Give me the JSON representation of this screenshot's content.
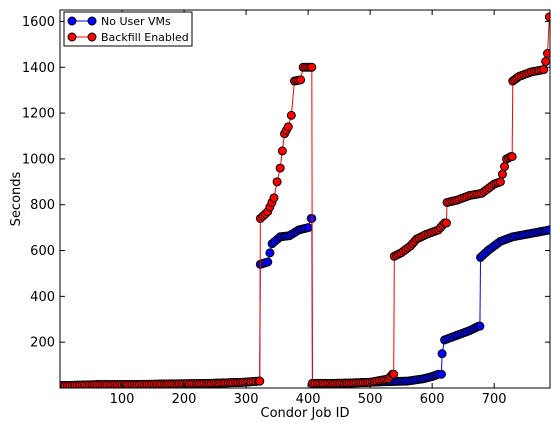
{
  "chart_data": {
    "type": "line",
    "xlabel": "Condor Job ID",
    "ylabel": "Seconds",
    "xlim": [
      0,
      790
    ],
    "ylim": [
      0,
      1650
    ],
    "x_ticks": [
      100,
      200,
      300,
      400,
      500,
      600,
      700
    ],
    "y_ticks": [
      200,
      400,
      600,
      800,
      1000,
      1200,
      1400,
      1600
    ],
    "grid": false,
    "legend_position": "top-left",
    "series": [
      {
        "name": "No User VMs",
        "color": "#0000ff",
        "segments": [
          [
            [
              0,
              10
            ],
            [
              60,
              14
            ],
            [
              120,
              15
            ],
            [
              180,
              18
            ],
            [
              240,
              20
            ],
            [
              295,
              25
            ],
            [
              320,
              30
            ],
            [
              322,
              30
            ]
          ],
          [
            [
              323,
              540
            ],
            [
              335,
              550
            ],
            [
              342,
              630
            ],
            [
              355,
              660
            ],
            [
              370,
              665
            ],
            [
              385,
              690
            ],
            [
              400,
              700
            ],
            [
              405,
              740
            ],
            [
              406,
              740
            ]
          ],
          [
            [
              407,
              20
            ],
            [
              440,
              20
            ],
            [
              470,
              22
            ],
            [
              500,
              25
            ],
            [
              530,
              28
            ],
            [
              560,
              30
            ],
            [
              585,
              40
            ],
            [
              600,
              50
            ],
            [
              610,
              60
            ],
            [
              615,
              60
            ]
          ],
          [
            [
              616,
              150
            ],
            [
              620,
              210
            ],
            [
              640,
              230
            ],
            [
              660,
              250
            ],
            [
              675,
              270
            ],
            [
              677,
              270
            ]
          ],
          [
            [
              678,
              570
            ],
            [
              690,
              600
            ],
            [
              710,
              640
            ],
            [
              730,
              660
            ],
            [
              750,
              670
            ],
            [
              770,
              680
            ],
            [
              789,
              690
            ]
          ]
        ]
      },
      {
        "name": "Backfill Enabled",
        "color": "#ff0000",
        "segments": [
          [
            [
              0,
              10
            ],
            [
              60,
              15
            ],
            [
              120,
              15
            ],
            [
              180,
              18
            ],
            [
              240,
              20
            ],
            [
              295,
              25
            ],
            [
              320,
              30
            ],
            [
              322,
              30
            ]
          ],
          [
            [
              323,
              740
            ],
            [
              335,
              770
            ],
            [
              345,
              830
            ],
            [
              350,
              900
            ],
            [
              355,
              960
            ],
            [
              362,
              1110
            ],
            [
              368,
              1140
            ],
            [
              373,
              1190
            ],
            [
              378,
              1340
            ],
            [
              388,
              1345
            ],
            [
              392,
              1400
            ],
            [
              403,
              1400
            ],
            [
              406,
              1400
            ]
          ],
          [
            [
              407,
              20
            ],
            [
              440,
              20
            ],
            [
              470,
              22
            ],
            [
              500,
              25
            ],
            [
              530,
              40
            ],
            [
              536,
              60
            ],
            [
              538,
              60
            ]
          ],
          [
            [
              539,
              575
            ],
            [
              550,
              590
            ],
            [
              565,
              620
            ],
            [
              575,
              650
            ],
            [
              590,
              670
            ],
            [
              610,
              690
            ],
            [
              620,
              720
            ],
            [
              623,
              720
            ]
          ],
          [
            [
              624,
              810
            ],
            [
              640,
              820
            ],
            [
              660,
              840
            ],
            [
              680,
              850
            ],
            [
              700,
              890
            ],
            [
              710,
              900
            ],
            [
              720,
              1000
            ],
            [
              727,
              1010
            ],
            [
              729,
              1010
            ]
          ],
          [
            [
              730,
              1340
            ],
            [
              740,
              1360
            ],
            [
              760,
              1380
            ],
            [
              780,
              1390
            ],
            [
              786,
              1460
            ],
            [
              789,
              1620
            ]
          ]
        ]
      }
    ]
  }
}
